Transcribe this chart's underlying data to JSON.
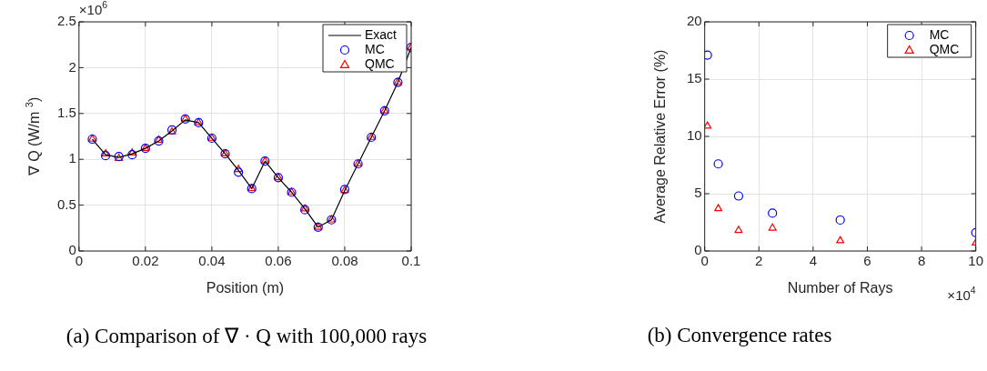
{
  "chart_data": [
    {
      "type": "scatter",
      "xlabel": "Position (m)",
      "ylabel": "∇ Q (W/m $^{3}$)",
      "x": [
        0.004,
        0.008,
        0.012,
        0.016,
        0.02,
        0.024,
        0.028,
        0.032,
        0.036,
        0.04,
        0.044,
        0.048,
        0.052,
        0.056,
        0.06,
        0.064,
        0.068,
        0.072,
        0.076,
        0.08,
        0.084,
        0.088,
        0.092,
        0.096,
        0.1
      ],
      "series": [
        {
          "name": "Exact",
          "type": "line",
          "color": "#000000",
          "marker": "none",
          "values": [
            1.22,
            1.05,
            1.02,
            1.06,
            1.12,
            1.2,
            1.31,
            1.43,
            1.4,
            1.23,
            1.06,
            0.88,
            0.68,
            0.98,
            0.8,
            0.64,
            0.46,
            0.26,
            0.34,
            0.66,
            0.95,
            1.24,
            1.53,
            1.84,
            2.22
          ]
        },
        {
          "name": "MC",
          "color": "#0000ff",
          "marker": "circle",
          "values": [
            1.22,
            1.04,
            1.03,
            1.05,
            1.12,
            1.2,
            1.32,
            1.44,
            1.4,
            1.23,
            1.06,
            0.86,
            0.68,
            0.98,
            0.8,
            0.64,
            0.45,
            0.26,
            0.34,
            0.67,
            0.95,
            1.24,
            1.53,
            1.84,
            2.22
          ]
        },
        {
          "name": "QMC",
          "color": "#ff0000",
          "marker": "triangle",
          "values": [
            1.22,
            1.06,
            1.01,
            1.07,
            1.12,
            1.21,
            1.3,
            1.44,
            1.4,
            1.23,
            1.06,
            0.89,
            0.68,
            0.98,
            0.8,
            0.64,
            0.46,
            0.26,
            0.34,
            0.66,
            0.95,
            1.24,
            1.53,
            1.84,
            2.22
          ]
        }
      ],
      "xlim": [
        0,
        0.1
      ],
      "xticks": [
        0,
        0.02,
        0.04,
        0.06,
        0.08,
        0.1
      ],
      "ylim": [
        0,
        2.5
      ],
      "yticks": [
        0,
        0.5,
        1,
        1.5,
        2,
        2.5
      ],
      "grid": true,
      "legend": "top right",
      "annotations": [
        "×10$^{6}$",
        "(a) Comparison of ∇ · Q with 100,000 rays"
      ]
    },
    {
      "type": "scatter",
      "xlabel": "Number of Rays",
      "ylabel": "Average Relative Error (%)",
      "x": [
        0.1,
        0.5,
        1.25,
        2.5,
        5,
        10
      ],
      "series": [
        {
          "name": "MC",
          "color": "#0000ff",
          "marker": "circle",
          "values": [
            17.1,
            7.6,
            4.8,
            3.3,
            2.7,
            1.6
          ]
        },
        {
          "name": "QMC",
          "color": "#ff0000",
          "marker": "triangle",
          "values": [
            10.9,
            3.7,
            1.8,
            2.0,
            0.9,
            0.7
          ]
        }
      ],
      "xlim": [
        0,
        10
      ],
      "xticks": [
        0,
        2,
        4,
        6,
        8,
        10
      ],
      "ylim": [
        0,
        20
      ],
      "yticks": [
        0,
        5,
        10,
        15,
        20
      ],
      "grid": true,
      "legend": "top right",
      "annotations": [
        "×10$^{4}$",
        "(b) Convergence rates"
      ]
    }
  ]
}
